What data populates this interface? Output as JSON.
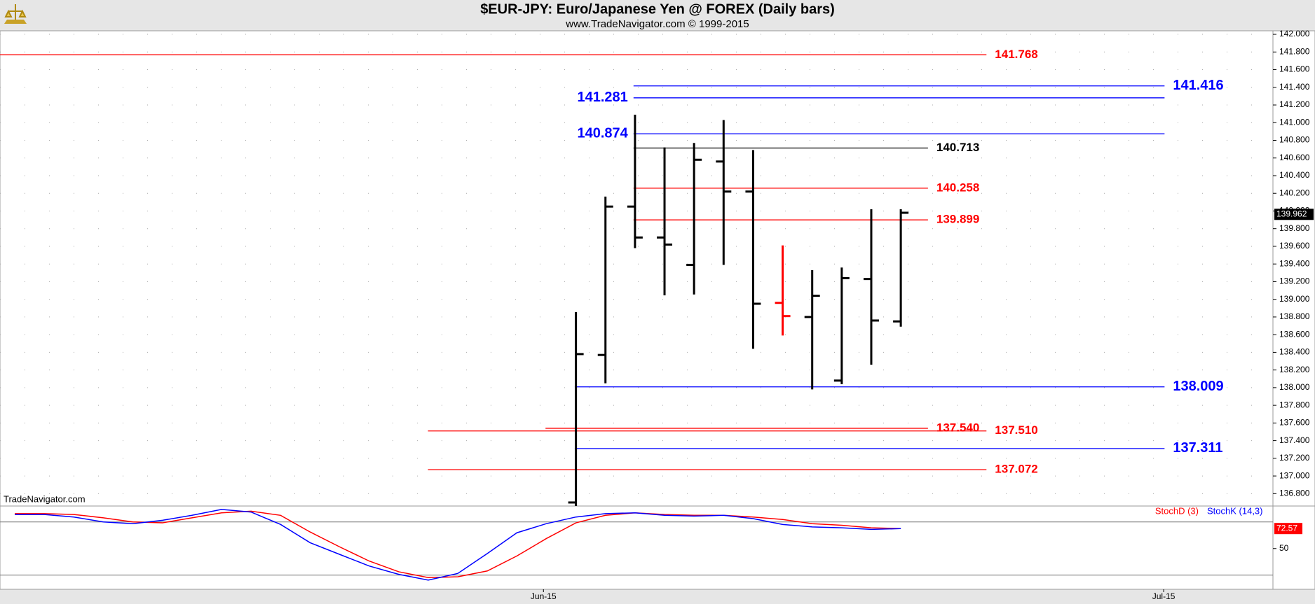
{
  "chart_data": [
    {
      "type": "ohlc",
      "title": "$EUR-JPY:  Euro/Japanese Yen @ FOREX  (Daily bars)",
      "subtitle": "www.TradeNavigator.com © 1999-2015",
      "watermark": "TradeNavigator.com",
      "x": [
        19.5,
        20.5,
        21.5,
        22.5,
        23.5,
        24.5,
        25.5,
        26.5,
        27.5,
        28.5,
        29.5,
        30.5
      ],
      "open": [
        136.7,
        138.37,
        140.05,
        139.7,
        139.39,
        140.56,
        140.22,
        138.96,
        138.8,
        138.08,
        139.23,
        138.75
      ],
      "high": [
        138.856,
        140.163,
        141.09,
        140.72,
        140.77,
        141.03,
        140.69,
        139.61,
        139.33,
        139.36,
        140.02,
        140.02
      ],
      "low": [
        136.62,
        138.05,
        139.58,
        139.045,
        139.055,
        139.39,
        138.44,
        138.59,
        137.98,
        138.04,
        138.26,
        138.69
      ],
      "close": [
        138.38,
        140.05,
        139.7,
        139.62,
        140.58,
        140.22,
        138.95,
        138.81,
        139.04,
        139.24,
        138.76,
        139.98
      ],
      "bar_colors": [
        "#000000",
        "#000000",
        "#000000",
        "#000000",
        "#000000",
        "#000000",
        "#000000",
        "#ff0000",
        "#000000",
        "#000000",
        "#000000",
        "#000000"
      ],
      "levels": [
        {
          "value": 141.768,
          "color": "#ff0000",
          "x": [
            0,
            33.4
          ],
          "label_side": "right"
        },
        {
          "value": 141.416,
          "color": "#0000ff",
          "x": [
            21.45,
            39.43
          ],
          "label_side": "right"
        },
        {
          "value": 141.281,
          "color": "#0000ff",
          "x": [
            21.45,
            39.43
          ],
          "label_side": "left"
        },
        {
          "value": 140.874,
          "color": "#0000ff",
          "x": [
            21.45,
            39.43
          ],
          "label_side": "left"
        },
        {
          "value": 140.713,
          "color": "#000000",
          "x": [
            21.45,
            31.42
          ],
          "label_side": "right"
        },
        {
          "value": 140.258,
          "color": "#ff0000",
          "x": [
            21.45,
            31.42
          ],
          "label_side": "right"
        },
        {
          "value": 139.899,
          "color": "#ff0000",
          "x": [
            21.45,
            31.42
          ],
          "label_side": "right"
        },
        {
          "value": 138.009,
          "color": "#0000ff",
          "x": [
            19.46,
            39.43
          ],
          "label_side": "right"
        },
        {
          "value": {
            "value": 137.54,
            "label": "137.540"
          },
          "color": "#ff0000",
          "x": [
            18.47,
            31.42
          ],
          "label_side": "right"
        },
        {
          "value": {
            "value": 137.51,
            "label": "137.510"
          },
          "color": "#ff0000",
          "x": [
            14.49,
            33.4
          ],
          "label_side": "right"
        },
        {
          "value": 137.311,
          "color": "#0000ff",
          "x": [
            19.46,
            39.43
          ],
          "label_side": "right"
        },
        {
          "value": 137.072,
          "color": "#ff0000",
          "x": [
            14.49,
            33.4
          ],
          "label_side": "right"
        }
      ],
      "last": 139.962,
      "xlim": [
        0,
        43.1
      ],
      "ylim": [
        136.66,
        142.04
      ],
      "yticks": [
        {
          "value": 136.8,
          "label": "136.800"
        },
        {
          "value": 137,
          "label": "137.000"
        },
        {
          "value": 137.2,
          "label": "137.200"
        },
        {
          "value": 137.4,
          "label": "137.400"
        },
        {
          "value": 137.6,
          "label": "137.600"
        },
        {
          "value": 137.8,
          "label": "137.800"
        },
        {
          "value": 138,
          "label": "138.000"
        },
        {
          "value": 138.2,
          "label": "138.200"
        },
        {
          "value": 138.4,
          "label": "138.400"
        },
        {
          "value": 138.6,
          "label": "138.600"
        },
        {
          "value": 138.8,
          "label": "138.800"
        },
        {
          "value": 139,
          "label": "139.000"
        },
        {
          "value": 139.2,
          "label": "139.200"
        },
        {
          "value": 139.4,
          "label": "139.400"
        },
        {
          "value": 139.6,
          "label": "139.600"
        },
        {
          "value": 139.8,
          "label": "139.800"
        },
        {
          "value": 140,
          "label": "140.000"
        },
        {
          "value": 140.2,
          "label": "140.200"
        },
        {
          "value": 140.4,
          "label": "140.400"
        },
        {
          "value": 140.6,
          "label": "140.600"
        },
        {
          "value": 140.8,
          "label": "140.800"
        },
        {
          "value": 141,
          "label": "141.000"
        },
        {
          "value": 141.2,
          "label": "141.200"
        },
        {
          "value": 141.4,
          "label": "141.400"
        },
        {
          "value": 141.6,
          "label": "141.600"
        },
        {
          "value": 141.8,
          "label": "141.800"
        },
        {
          "value": 142,
          "label": "142.000"
        }
      ],
      "grid": true
    },
    {
      "type": "line",
      "x": [
        0.5,
        1.5,
        2.5,
        3.5,
        4.5,
        5.5,
        6.5,
        7.5,
        8.5,
        9.5,
        10.5,
        11.5,
        12.5,
        13.5,
        14.5,
        15.5,
        16.5,
        17.5,
        18.5,
        19.5,
        20.5,
        21.5,
        22.5,
        23.5,
        24.5,
        25.5,
        26.5,
        27.5,
        28.5,
        29.5,
        30.5
      ],
      "series": [
        {
          "name": "StochD (3)",
          "color": "#ff0000",
          "values": [
            89.4,
            89.4,
            88.4,
            84.7,
            80,
            79,
            84.7,
            90.3,
            92.2,
            87.5,
            68.7,
            51.9,
            35.9,
            23.8,
            17.2,
            18.1,
            24.7,
            41.6,
            61.3,
            79,
            87.5,
            90.3,
            88.4,
            87.5,
            87.5,
            85.6,
            82.8,
            78.1,
            76.3,
            73.4,
            72.57
          ]
        },
        {
          "name": "StochK (14,3)",
          "color": "#0000ff",
          "values": [
            88.4,
            88.4,
            85.6,
            80,
            78.1,
            81.9,
            87.5,
            94.1,
            91.2,
            77.2,
            56.6,
            43.4,
            30.3,
            20.9,
            14.4,
            21.9,
            44.4,
            67.8,
            78.1,
            85.6,
            89.4,
            90.3,
            87.5,
            86.6,
            87.5,
            83.8,
            77.2,
            74.4,
            73.4,
            71.6,
            72.5
          ]
        }
      ],
      "levels": [
        20,
        80
      ],
      "last": 72.57,
      "xlim": [
        0,
        43.1
      ],
      "ylim": [
        4,
        98
      ],
      "yticks": [
        50
      ],
      "xticks": [
        {
          "value": 18.4,
          "label": "Jun-15"
        },
        {
          "value": 39.4,
          "label": "Jul-15"
        }
      ]
    }
  ]
}
